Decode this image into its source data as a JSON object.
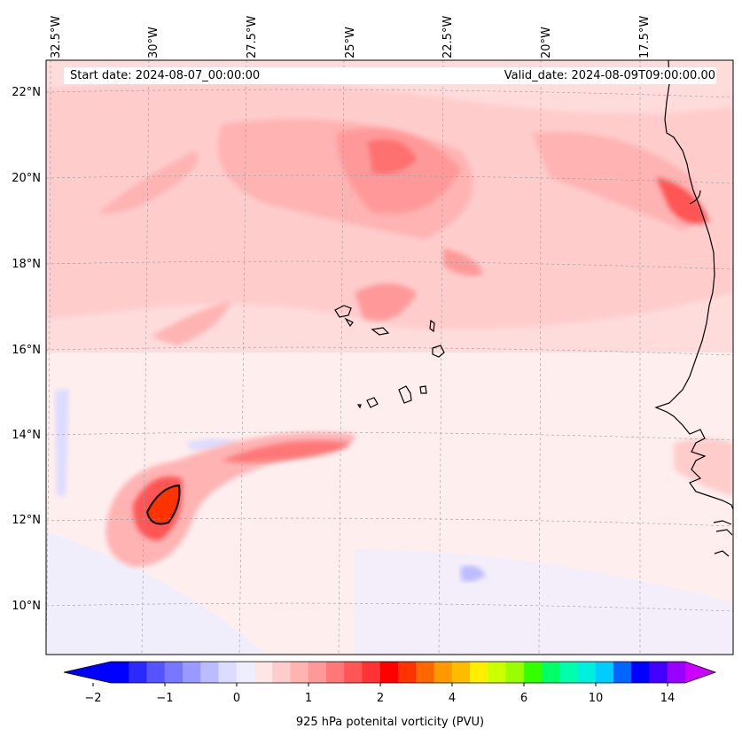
{
  "map": {
    "start_date": "Start date: 2024-08-07_00:00:00",
    "valid_date": "Valid_date: 2024-08-09T09:00:00.00",
    "lon_labels": [
      "32.5°W",
      "30°W",
      "27.5°W",
      "25°W",
      "22.5°W",
      "20°W",
      "17.5°W"
    ],
    "lat_labels": [
      "22°N",
      "20°N",
      "18°N",
      "16°N",
      "14°N",
      "12°N",
      "10°N"
    ],
    "colorbar": {
      "label": "925 hPa potenital vorticity (PVU)",
      "tick_labels": [
        "−2",
        "−1",
        "0",
        "1",
        "2",
        "4",
        "6",
        "10",
        "14"
      ],
      "colors": [
        "#0000ff",
        "#2a2aff",
        "#5555ff",
        "#7777ff",
        "#9999ff",
        "#bbbbff",
        "#dcdcff",
        "#eeeeff",
        "#ffe6e6",
        "#ffcccc",
        "#ffb3b3",
        "#ff9999",
        "#ff7777",
        "#ff5555",
        "#ff3333",
        "#ff0000",
        "#ff3300",
        "#ff6600",
        "#ff9900",
        "#ffbb00",
        "#ffee00",
        "#ccff00",
        "#99ff00",
        "#33ff00",
        "#00ff66",
        "#00ffaa",
        "#00eedd",
        "#00ccff",
        "#0066ff",
        "#0000ff",
        "#4400ff",
        "#9900ff"
      ],
      "min_color": "#0000ff",
      "max_color": "#cc00ff"
    },
    "background_color": "#ffeeee",
    "coastline_color": "#000000"
  }
}
